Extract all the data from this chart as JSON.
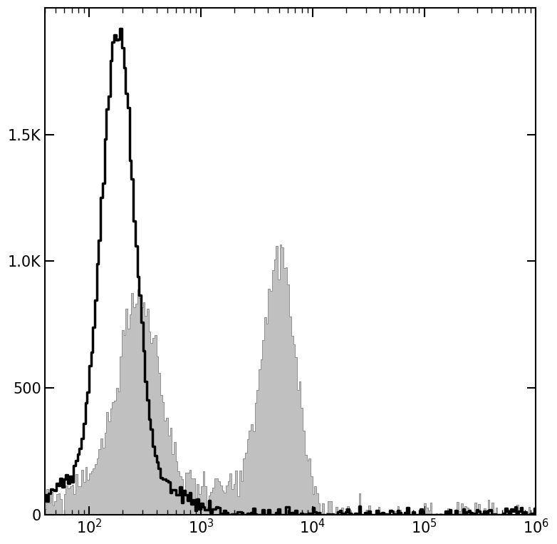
{
  "xlim": [
    40.0,
    1000000.0
  ],
  "ylim": [
    0,
    2000
  ],
  "yticks": [
    0,
    500,
    1000,
    1500
  ],
  "ytick_labels": [
    "0",
    "500",
    "1.0K",
    "1.5K"
  ],
  "background_color": "#ffffff",
  "black_hist": {
    "peak_x": 180,
    "peak_y": 1900,
    "sigma": 0.35,
    "color": "#000000",
    "linewidth": 2.5
  },
  "gray_hist": {
    "peak1_x": 280,
    "peak1_y": 1020,
    "peak2_x": 5000,
    "peak2_y": 820,
    "sigma1": 0.45,
    "sigma2": 0.38,
    "fill_color": "#c0c0c0",
    "edge_color": "#909090"
  }
}
